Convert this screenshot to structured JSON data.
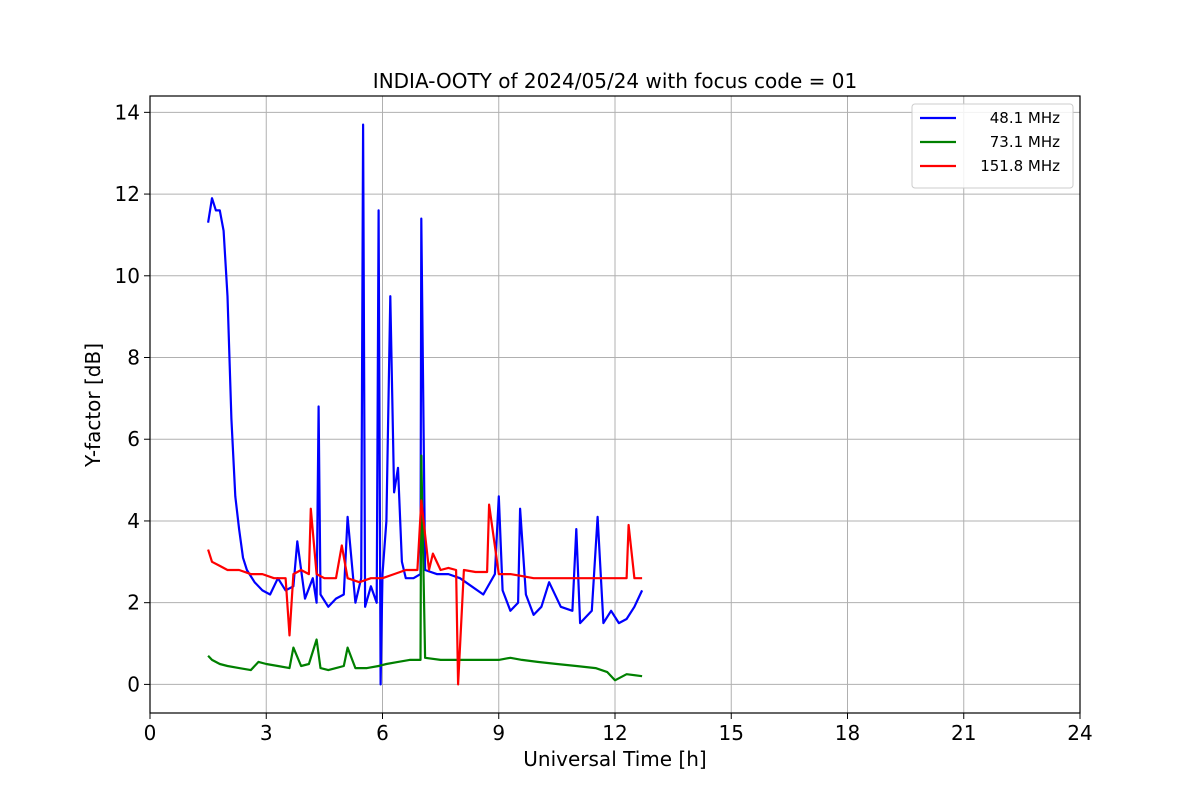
{
  "chart_data": {
    "type": "line",
    "title": "INDIA-OOTY of 2024/05/24 with focus code = 01",
    "xlabel": "Universal Time [h]",
    "ylabel": "Y-factor [dB]",
    "xlim": [
      0,
      24
    ],
    "ylim": [
      -0.7,
      14.4
    ],
    "xticks": [
      0,
      3,
      6,
      9,
      12,
      15,
      18,
      21,
      24
    ],
    "yticks": [
      0,
      2,
      4,
      6,
      8,
      10,
      12,
      14
    ],
    "grid": true,
    "legend_position": "top-right",
    "series": [
      {
        "name": "48.1 MHz",
        "color": "#0000ff",
        "x": [
          1.5,
          1.6,
          1.7,
          1.8,
          1.9,
          2.0,
          2.1,
          2.2,
          2.3,
          2.4,
          2.5,
          2.7,
          2.9,
          3.1,
          3.3,
          3.5,
          3.7,
          3.8,
          4.0,
          4.2,
          4.3,
          4.35,
          4.4,
          4.6,
          4.8,
          5.0,
          5.1,
          5.3,
          5.45,
          5.5,
          5.55,
          5.7,
          5.85,
          5.9,
          5.95,
          6.0,
          6.1,
          6.2,
          6.3,
          6.4,
          6.5,
          6.6,
          6.8,
          6.98,
          7.0,
          7.1,
          7.4,
          7.7,
          8.0,
          8.3,
          8.6,
          8.9,
          9.0,
          9.1,
          9.3,
          9.5,
          9.55,
          9.7,
          9.9,
          10.1,
          10.3,
          10.6,
          10.9,
          11.0,
          11.1,
          11.4,
          11.55,
          11.7,
          11.9,
          12.1,
          12.3,
          12.5,
          12.7
        ],
        "y": [
          11.3,
          11.9,
          11.6,
          11.6,
          11.1,
          9.5,
          6.5,
          4.6,
          3.8,
          3.1,
          2.8,
          2.5,
          2.3,
          2.2,
          2.6,
          2.3,
          2.4,
          3.5,
          2.1,
          2.6,
          2.0,
          6.8,
          2.2,
          1.9,
          2.1,
          2.2,
          4.1,
          2.0,
          2.6,
          13.7,
          1.9,
          2.4,
          2.0,
          11.6,
          0.0,
          2.7,
          4.0,
          9.5,
          4.7,
          5.3,
          3.0,
          2.6,
          2.6,
          2.7,
          11.4,
          2.8,
          2.7,
          2.7,
          2.6,
          2.4,
          2.2,
          2.7,
          4.6,
          2.3,
          1.8,
          2.0,
          4.3,
          2.2,
          1.7,
          1.9,
          2.5,
          1.9,
          1.8,
          3.8,
          1.5,
          1.8,
          4.1,
          1.5,
          1.8,
          1.5,
          1.6,
          1.9,
          2.3
        ]
      },
      {
        "name": "73.1 MHz",
        "color": "#008000",
        "x": [
          1.5,
          1.6,
          1.8,
          2.0,
          2.3,
          2.6,
          2.8,
          3.0,
          3.3,
          3.6,
          3.7,
          3.9,
          4.1,
          4.3,
          4.4,
          4.6,
          4.8,
          5.0,
          5.1,
          5.3,
          5.6,
          5.9,
          6.1,
          6.4,
          6.7,
          6.98,
          7.0,
          7.1,
          7.5,
          8.0,
          8.5,
          9.0,
          9.3,
          9.6,
          10.0,
          10.5,
          11.0,
          11.5,
          11.8,
          12.0,
          12.3,
          12.7
        ],
        "y": [
          0.7,
          0.6,
          0.5,
          0.45,
          0.4,
          0.35,
          0.55,
          0.5,
          0.45,
          0.4,
          0.9,
          0.45,
          0.5,
          1.1,
          0.4,
          0.35,
          0.4,
          0.45,
          0.9,
          0.4,
          0.4,
          0.45,
          0.5,
          0.55,
          0.6,
          0.6,
          5.6,
          0.65,
          0.6,
          0.6,
          0.6,
          0.6,
          0.65,
          0.6,
          0.55,
          0.5,
          0.45,
          0.4,
          0.3,
          0.1,
          0.25,
          0.2
        ]
      },
      {
        "name": "151.8 MHz",
        "color": "#ff0000",
        "x": [
          1.5,
          1.6,
          1.8,
          2.0,
          2.3,
          2.6,
          2.9,
          3.2,
          3.5,
          3.6,
          3.7,
          3.9,
          4.1,
          4.15,
          4.3,
          4.5,
          4.8,
          4.95,
          5.1,
          5.4,
          5.7,
          6.0,
          6.3,
          6.6,
          6.9,
          7.0,
          7.2,
          7.3,
          7.5,
          7.7,
          7.9,
          7.95,
          8.1,
          8.4,
          8.7,
          8.75,
          9.0,
          9.3,
          9.6,
          9.9,
          10.2,
          10.5,
          10.8,
          11.1,
          11.4,
          11.7,
          12.0,
          12.3,
          12.35,
          12.5,
          12.7
        ],
        "y": [
          3.3,
          3.0,
          2.9,
          2.8,
          2.8,
          2.7,
          2.7,
          2.6,
          2.6,
          1.2,
          2.7,
          2.8,
          2.7,
          4.3,
          2.7,
          2.6,
          2.6,
          3.4,
          2.6,
          2.5,
          2.6,
          2.6,
          2.7,
          2.8,
          2.8,
          4.5,
          2.8,
          3.2,
          2.8,
          2.85,
          2.8,
          0.0,
          2.8,
          2.75,
          2.75,
          4.4,
          2.7,
          2.7,
          2.65,
          2.6,
          2.6,
          2.6,
          2.6,
          2.6,
          2.6,
          2.6,
          2.6,
          2.6,
          3.9,
          2.6,
          2.6
        ]
      }
    ]
  }
}
